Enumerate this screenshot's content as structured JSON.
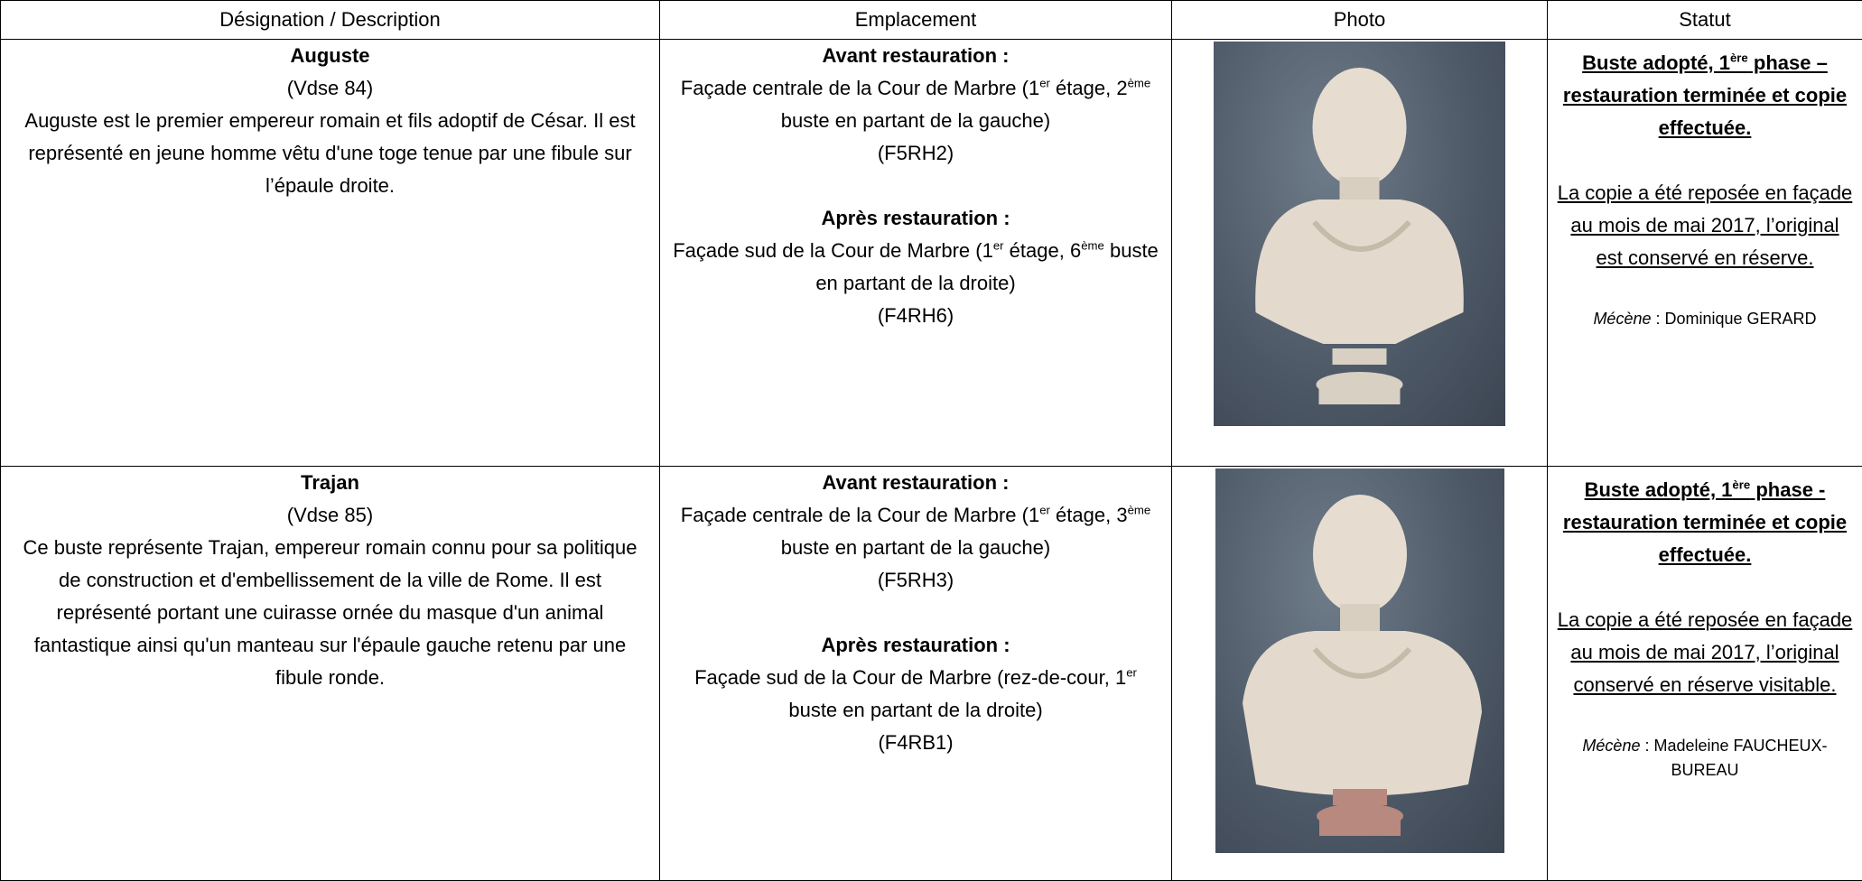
{
  "table": {
    "headers": [
      "Désignation / Description",
      "Emplacement",
      "Photo",
      "Statut"
    ],
    "rows": [
      {
        "name": "Auguste",
        "code": "(Vdse 84)",
        "description": "Auguste est le premier empereur romain et fils adoptif de César. Il est représenté en jeune homme vêtu d'une toge tenue par une fibule sur l’épaule droite.",
        "before_label": "Avant restauration :",
        "before_text": [
          "Façade centrale de la Cour de Marbre (1",
          {
            "sup": "er"
          },
          " étage, 2",
          {
            "sup": "ème"
          },
          " buste en partant de la gauche)"
        ],
        "before_code": "(F5RH2)",
        "after_label": "Après restauration :",
        "after_text": [
          "Façade sud de la Cour de Marbre (1",
          {
            "sup": "er"
          },
          " étage, 6",
          {
            "sup": "ème"
          },
          " buste en partant de la droite)"
        ],
        "after_code": "(F4RH6)",
        "status_title": [
          "Buste adopté, 1",
          {
            "sup": "ère"
          },
          " phase – restauration terminée et copie effectuée."
        ],
        "status_body": "La copie a été reposée en façade au mois de mai 2017, l’original est conservé en réserve.",
        "patron_label": "Mécène",
        "patron_text": ": Dominique GERARD"
      },
      {
        "name": "Trajan",
        "code": "(Vdse 85)",
        "description": "Ce buste représente Trajan, empereur romain connu pour sa politique de construction et d'embellissement de la ville de Rome. Il est représenté portant une cuirasse ornée du masque d'un animal fantastique ainsi qu'un manteau sur l'épaule gauche retenu par une fibule ronde.",
        "before_label": "Avant restauration :",
        "before_text": [
          "Façade centrale de la Cour de Marbre (1",
          {
            "sup": "er"
          },
          " étage, 3",
          {
            "sup": "ème"
          },
          " buste en partant de la gauche)"
        ],
        "before_code": "(F5RH3)",
        "after_label": "Après restauration :",
        "after_text": [
          "Façade sud de la Cour de Marbre (rez-de-cour, 1",
          {
            "sup": "er"
          },
          " buste en partant de la droite)"
        ],
        "after_code": "(F4RB1)",
        "status_title": [
          "Buste adopté, 1",
          {
            "sup": "ère"
          },
          " phase - restauration terminée et copie effectuée."
        ],
        "status_body": "La copie a été reposée en façade au mois de mai 2017, l’original conservé en réserve visitable.",
        "patron_label": "Mécène",
        "patron_text": ": Madeleine FAUCHEUX-BUREAU"
      }
    ]
  }
}
